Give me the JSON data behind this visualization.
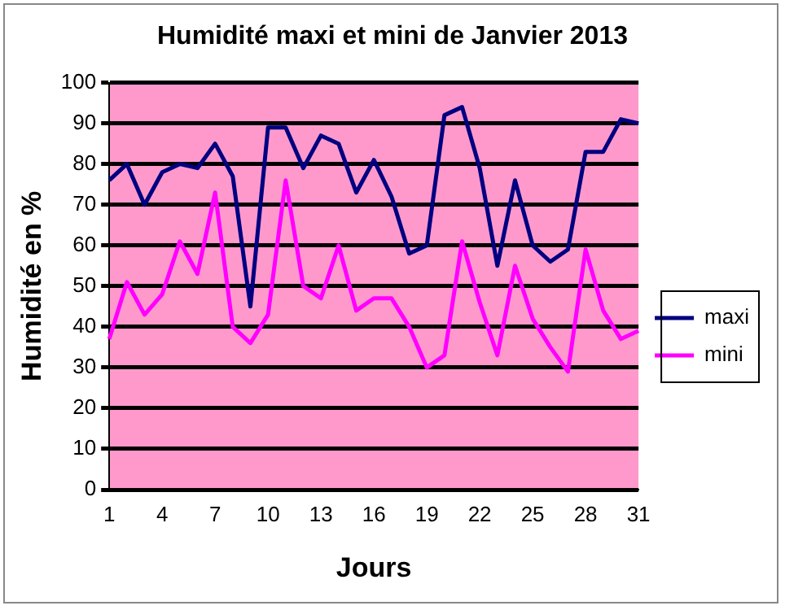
{
  "chart_data": {
    "type": "line",
    "title": "Humidité maxi et mini de Janvier 2013",
    "xlabel": "Jours",
    "ylabel": "Humidité en %",
    "categories": [
      "1",
      null,
      null,
      "4",
      null,
      null,
      "7",
      null,
      null,
      "10",
      null,
      null,
      "13",
      null,
      null,
      "16",
      null,
      null,
      "19",
      null,
      null,
      "22",
      null,
      null,
      "25",
      null,
      null,
      "28",
      null,
      null,
      "31"
    ],
    "series": [
      {
        "name": "maxi",
        "color": "#000080",
        "values": [
          76,
          80,
          70,
          78,
          80,
          79,
          85,
          77,
          45,
          89,
          89,
          79,
          87,
          85,
          73,
          81,
          72,
          58,
          60,
          92,
          94,
          79,
          55,
          76,
          60,
          56,
          59,
          83,
          83,
          91,
          90
        ]
      },
      {
        "name": "mini",
        "color": "#ff00ff",
        "values": [
          37,
          51,
          43,
          48,
          61,
          53,
          73,
          40,
          36,
          43,
          76,
          50,
          47,
          60,
          44,
          47,
          47,
          40,
          30,
          33,
          61,
          46,
          33,
          55,
          42,
          35,
          29,
          59,
          44,
          37,
          39
        ]
      }
    ],
    "ylim": [
      0,
      100
    ],
    "yticks": [
      0,
      10,
      20,
      30,
      40,
      50,
      60,
      70,
      80,
      90,
      100
    ],
    "grid": "y",
    "legend": "right",
    "marker": "none",
    "line_style": "solid"
  }
}
